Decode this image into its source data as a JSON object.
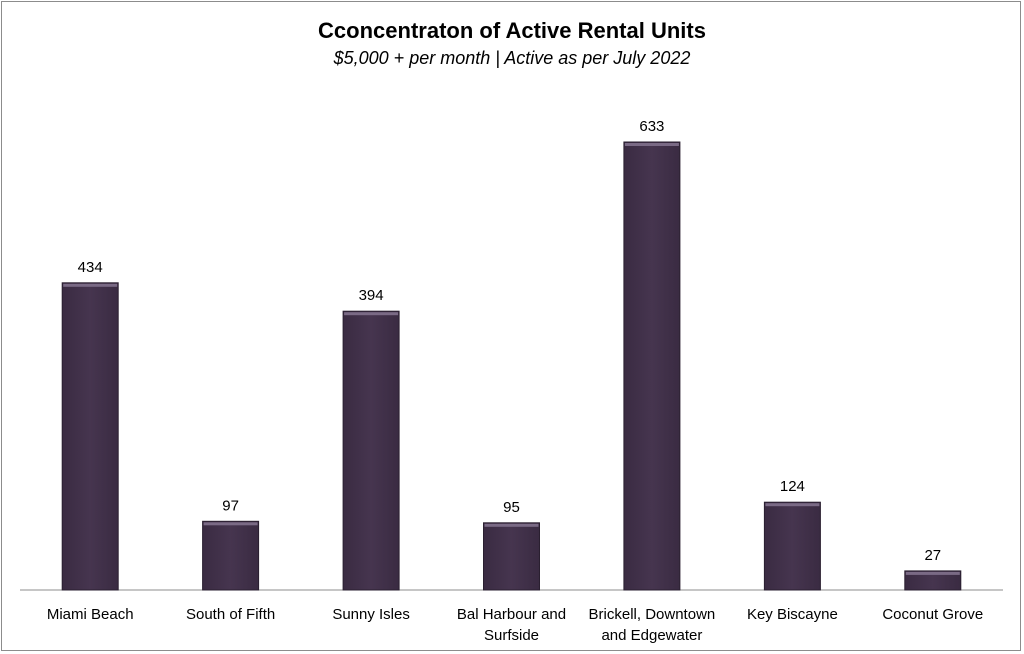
{
  "chart_data": {
    "type": "bar",
    "title": "Cconcentraton of Active Rental Units",
    "subtitle": "$5,000 + per month | Active as per July 2022",
    "categories": [
      [
        "Miami Beach"
      ],
      [
        "South of Fifth"
      ],
      [
        "Sunny Isles"
      ],
      [
        "Bal Harbour and",
        "Surfside"
      ],
      [
        "Brickell, Downtown",
        "and Edgewater"
      ],
      [
        "Key Biscayne"
      ],
      [
        "Coconut Grove"
      ]
    ],
    "values": [
      434,
      97,
      394,
      95,
      633,
      124,
      27
    ],
    "xlabel": "",
    "ylabel": "",
    "ylim": [
      0,
      633
    ],
    "grid": false,
    "legend": "none",
    "bar_color": "#46354f",
    "bar_edge_color": "#2a1f30"
  }
}
